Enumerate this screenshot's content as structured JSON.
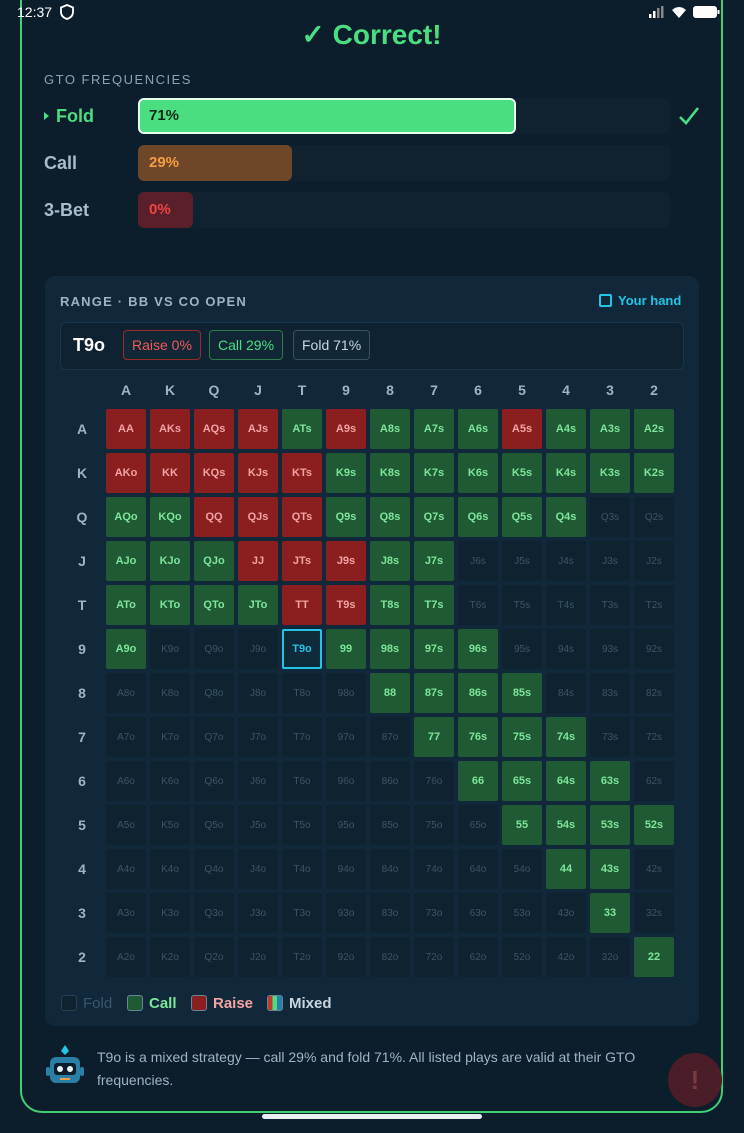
{
  "status": {
    "time": "12:37"
  },
  "header": {
    "title": "✓ Correct!"
  },
  "frequencies": {
    "label": "GTO FREQUENCIES",
    "xlim": [
      0,
      100
    ],
    "rows": [
      {
        "name": "Fold",
        "value": 71,
        "value_label": "71%",
        "color": "#4ade80",
        "text_color": "#0b2a18",
        "selected": true
      },
      {
        "name": "Call",
        "value": 29,
        "value_label": "29%",
        "color": "#6e4628",
        "text_color": "#f59e42"
      },
      {
        "name": "3-Bet",
        "value": 0,
        "value_label": "0%",
        "color": "#5a1f2a",
        "text_color": "#ef4444"
      }
    ]
  },
  "range": {
    "title": "RANGE · BB VS CO OPEN",
    "your_hand": "Your hand",
    "hand": "T9o",
    "chips": [
      {
        "text": "Raise 0%",
        "action": "R"
      },
      {
        "text": "Call 29%",
        "action": "C"
      },
      {
        "text": "Fold 71%",
        "action": "F"
      }
    ],
    "columns": [
      "A",
      "K",
      "Q",
      "J",
      "T",
      "9",
      "8",
      "7",
      "6",
      "5",
      "4",
      "3",
      "2"
    ],
    "rows": [
      "A",
      "K",
      "Q",
      "J",
      "T",
      "9",
      "8",
      "7",
      "6",
      "5",
      "4",
      "3",
      "2"
    ],
    "cells": [
      [
        "AA",
        "AKs",
        "AQs",
        "AJs",
        "ATs",
        "A9s",
        "A8s",
        "A7s",
        "A6s",
        "A5s",
        "A4s",
        "A3s",
        "A2s"
      ],
      [
        "AKo",
        "KK",
        "KQs",
        "KJs",
        "KTs",
        "K9s",
        "K8s",
        "K7s",
        "K6s",
        "K5s",
        "K4s",
        "K3s",
        "K2s"
      ],
      [
        "AQo",
        "KQo",
        "QQ",
        "QJs",
        "QTs",
        "Q9s",
        "Q8s",
        "Q7s",
        "Q6s",
        "Q5s",
        "Q4s",
        "Q3s",
        "Q2s"
      ],
      [
        "AJo",
        "KJo",
        "QJo",
        "JJ",
        "JTs",
        "J9s",
        "J8s",
        "J7s",
        "J6s",
        "J5s",
        "J4s",
        "J3s",
        "J2s"
      ],
      [
        "ATo",
        "KTo",
        "QTo",
        "JTo",
        "TT",
        "T9s",
        "T8s",
        "T7s",
        "T6s",
        "T5s",
        "T4s",
        "T3s",
        "T2s"
      ],
      [
        "A9o",
        "K9o",
        "Q9o",
        "J9o",
        "T9o",
        "99",
        "98s",
        "97s",
        "96s",
        "95s",
        "94s",
        "93s",
        "92s"
      ],
      [
        "A8o",
        "K8o",
        "Q8o",
        "J8o",
        "T8o",
        "98o",
        "88",
        "87s",
        "86s",
        "85s",
        "84s",
        "83s",
        "82s"
      ],
      [
        "A7o",
        "K7o",
        "Q7o",
        "J7o",
        "T7o",
        "97o",
        "87o",
        "77",
        "76s",
        "75s",
        "74s",
        "73s",
        "72s"
      ],
      [
        "A6o",
        "K6o",
        "Q6o",
        "J6o",
        "T6o",
        "96o",
        "86o",
        "76o",
        "66",
        "65s",
        "64s",
        "63s",
        "62s"
      ],
      [
        "A5o",
        "K5o",
        "Q5o",
        "J5o",
        "T5o",
        "95o",
        "85o",
        "75o",
        "65o",
        "55",
        "54s",
        "53s",
        "52s"
      ],
      [
        "A4o",
        "K4o",
        "Q4o",
        "J4o",
        "T4o",
        "94o",
        "84o",
        "74o",
        "64o",
        "54o",
        "44",
        "43s",
        "42s"
      ],
      [
        "A3o",
        "K3o",
        "Q3o",
        "J3o",
        "T3o",
        "93o",
        "83o",
        "73o",
        "63o",
        "53o",
        "43o",
        "33",
        "32s"
      ],
      [
        "A2o",
        "K2o",
        "Q2o",
        "J2o",
        "T2o",
        "92o",
        "82o",
        "72o",
        "62o",
        "52o",
        "42o",
        "32o",
        "22"
      ]
    ],
    "actions": [
      "RRRRCRCCCRCCC",
      "RRRRRCCCCCCCC",
      "CCRRRCCCCCCFF",
      "CCCRRRCCFFFFF",
      "CCCCRRCCFFFFF",
      "CFFFFCCCCFFFF",
      "FFFFFFCCCCFFF",
      "FFFFFFFCCCCFF",
      "FFFFFFFFCCCCF",
      "FFFFFFFFFCCCC",
      "FFFFFFFFFFCCF",
      "FFFFFFFFFFFCF",
      "FFFFFFFFFFFFC"
    ]
  },
  "legend": [
    {
      "label": "Fold",
      "action": "F"
    },
    {
      "label": "Call",
      "action": "C"
    },
    {
      "label": "Raise",
      "action": "R"
    },
    {
      "label": "Mixed",
      "action": "M"
    }
  ],
  "footer": {
    "text": "T9o is a mixed strategy — call 29% and fold 71%. All listed plays are valid at their GTO frequencies."
  }
}
